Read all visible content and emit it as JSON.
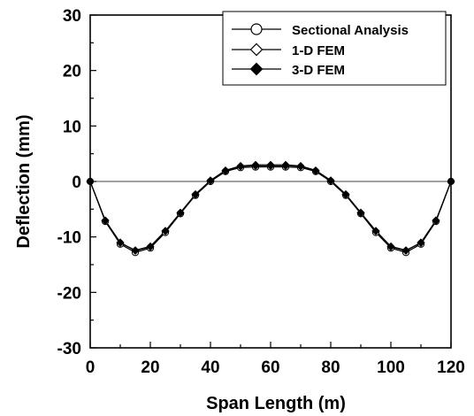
{
  "chart_data": {
    "type": "line",
    "title": "",
    "xlabel": "Span Length (m)",
    "ylabel": "Deflection (mm)",
    "xlim": [
      0,
      120
    ],
    "ylim": [
      -30,
      30
    ],
    "x_ticks": [
      "0",
      "20",
      "40",
      "60",
      "80",
      "100",
      "120"
    ],
    "y_ticks": [
      "30",
      "20",
      "10",
      "0",
      "-10",
      "-20",
      "-30"
    ],
    "zero_line": true,
    "grid": false,
    "legend_position": "top-right",
    "x": [
      0,
      5,
      10,
      15,
      20,
      25,
      30,
      35,
      40,
      45,
      50,
      55,
      60,
      65,
      70,
      75,
      80,
      85,
      90,
      95,
      100,
      105,
      110,
      115,
      120
    ],
    "series": [
      {
        "name": "Sectional Analysis",
        "marker": "circle-open",
        "values": [
          0,
          -7.2,
          -11.3,
          -12.8,
          -12.0,
          -9.2,
          -5.8,
          -2.5,
          0,
          1.8,
          2.5,
          2.6,
          2.6,
          2.6,
          2.5,
          1.8,
          0,
          -2.5,
          -5.8,
          -9.2,
          -12.0,
          -12.8,
          -11.3,
          -7.2,
          0
        ]
      },
      {
        "name": "1-D FEM",
        "marker": "diamond-open",
        "values": [
          0,
          -7.0,
          -11.0,
          -12.5,
          -11.8,
          -9.0,
          -5.7,
          -2.4,
          0.1,
          1.9,
          2.7,
          2.8,
          2.8,
          2.8,
          2.7,
          1.9,
          0.1,
          -2.4,
          -5.7,
          -9.0,
          -11.8,
          -12.5,
          -11.0,
          -7.0,
          0
        ]
      },
      {
        "name": "3-D FEM",
        "marker": "diamond-filled",
        "values": [
          0,
          -7.1,
          -11.1,
          -12.4,
          -11.7,
          -8.9,
          -5.6,
          -2.3,
          0.2,
          2.0,
          2.8,
          3.0,
          3.0,
          3.0,
          2.8,
          2.0,
          0.2,
          -2.3,
          -5.6,
          -8.9,
          -11.7,
          -12.4,
          -11.1,
          -7.1,
          0
        ]
      }
    ]
  }
}
